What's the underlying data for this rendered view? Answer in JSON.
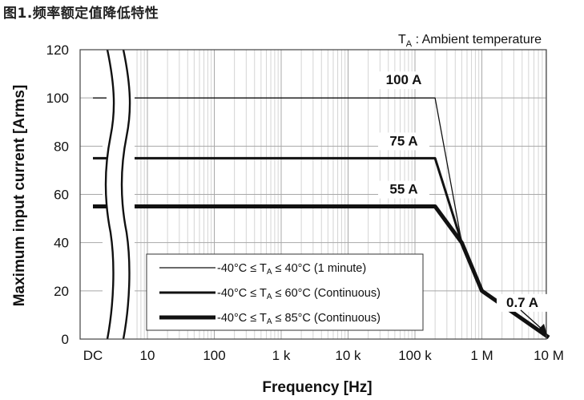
{
  "figure_title": "图1.频率额定值降低特性",
  "chart_data": {
    "type": "line",
    "title": "",
    "note_main": "T",
    "note_sub": "A",
    "note_rest": " : Ambient temperature",
    "xlabel": "Frequency [Hz]",
    "ylabel": "Maximum input current [Arms]",
    "xscale": "log",
    "xlim": [
      1,
      10000000
    ],
    "ylim": [
      0,
      120
    ],
    "yticks": [
      0,
      20,
      40,
      60,
      80,
      100,
      120
    ],
    "xticks": [
      {
        "label": "DC",
        "value": null
      },
      {
        "label": "10",
        "value": 10
      },
      {
        "label": "100",
        "value": 100
      },
      {
        "label": "1 k",
        "value": 1000
      },
      {
        "label": "10 k",
        "value": 10000
      },
      {
        "label": "100 k",
        "value": 100000
      },
      {
        "label": "1 M",
        "value": 1000000
      },
      {
        "label": "10 M",
        "value": 10000000
      }
    ],
    "axis_break": "between DC and 10 Hz",
    "grid": true,
    "legend_position": "bottom-left inside plot",
    "series": [
      {
        "name": "-40°C ≤ TA ≤ 40°C  (1 minute)",
        "legend_prefix": "-40°C ≤ T",
        "legend_sub": "A",
        "legend_suffix": "≤ 40°C  (1 minute)",
        "line_weight": "thin",
        "points": [
          [
            "DC",
            100
          ],
          [
            200000,
            100
          ],
          [
            500000,
            40
          ],
          [
            1000000,
            20
          ],
          [
            10000000,
            0.7
          ]
        ]
      },
      {
        "name": "-40°C ≤ TA ≤ 60°C  (Continuous)",
        "legend_prefix": "-40°C ≤ T",
        "legend_sub": "A",
        "legend_suffix": "≤ 60°C  (Continuous)",
        "line_weight": "medium",
        "points": [
          [
            "DC",
            75
          ],
          [
            200000,
            75
          ],
          [
            500000,
            40
          ],
          [
            1000000,
            20
          ],
          [
            10000000,
            0.7
          ]
        ]
      },
      {
        "name": "-40°C ≤ TA ≤ 85°C  (Continuous)",
        "legend_prefix": "-40°C ≤ T",
        "legend_sub": "A",
        "legend_suffix": "≤ 85°C  (Continuous)",
        "line_weight": "thick",
        "points": [
          [
            "DC",
            55
          ],
          [
            200000,
            55
          ],
          [
            500000,
            40
          ],
          [
            1000000,
            20
          ],
          [
            10000000,
            0.7
          ]
        ]
      }
    ],
    "annotations": [
      {
        "text": "100 A",
        "x": 100000,
        "y": 100
      },
      {
        "text": "75 A",
        "x": 100000,
        "y": 75
      },
      {
        "text": "55 A",
        "x": 100000,
        "y": 55
      },
      {
        "text": "0.7 A",
        "x": 10000000,
        "y": 0.7
      }
    ]
  }
}
